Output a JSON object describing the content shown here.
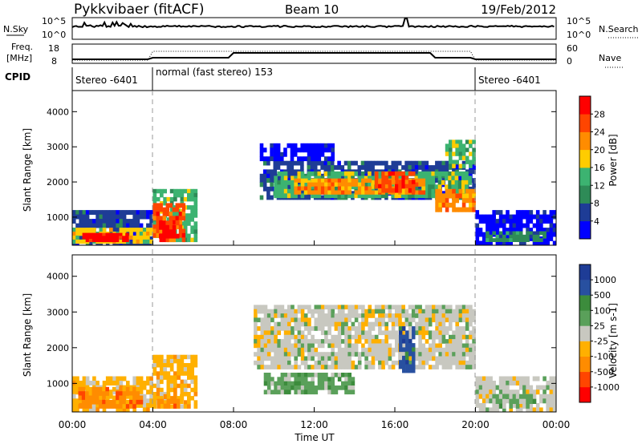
{
  "header": {
    "station": "Pykkvibaer (fitACF)",
    "beam": "Beam 10",
    "date": "19/Feb/2012"
  },
  "top_panels": {
    "nsky_label": "N.Sky",
    "nsky_ticks": [
      "10^5",
      "10^0"
    ],
    "nsearch_label": "N.Search",
    "nsearch_ticks": [
      "10^5",
      "10^0"
    ],
    "freq_label_1": "Freq.",
    "freq_label_2": "[MHz]",
    "freq_ticks": [
      "18",
      "8"
    ],
    "nave_label": "Nave",
    "nave_ticks": [
      "60",
      "0"
    ],
    "cpid_label": "CPID",
    "cpid_segments": [
      "Stereo -6401",
      "normal (fast stereo) 153",
      "Stereo -6401"
    ]
  },
  "x_axis": {
    "label": "Time UT",
    "ticks": [
      "00:00",
      "04:00",
      "08:00",
      "12:00",
      "16:00",
      "20:00",
      "00:00"
    ]
  },
  "colors": {
    "power": [
      "#0000ff",
      "#1e3c96",
      "#2e8b57",
      "#3cb371",
      "#ffcc00",
      "#ff8c00",
      "#ff4500",
      "#ff0000"
    ],
    "velocity": [
      "#ff0000",
      "#ff4500",
      "#ff8c00",
      "#ffb000",
      "#c8c8c0",
      "#5aa05a",
      "#3c8c3c",
      "#2850a0",
      "#1e3c96"
    ]
  },
  "chart_data": [
    {
      "type": "heatmap",
      "name": "power",
      "xlabel": "",
      "ylabel": "Slant Range [km]",
      "x_range_hours": [
        0,
        24
      ],
      "ylim": [
        200,
        4600
      ],
      "y_ticks": [
        "4000",
        "3000",
        "2000",
        "1000"
      ],
      "colorbar_label": "Power [dB]",
      "colorbar_ticks": [
        "28",
        "24",
        "20",
        "16",
        "12",
        "8",
        "4"
      ],
      "patches": [
        {
          "t0": 0.0,
          "t1": 4.0,
          "r0": 200,
          "r1": 1200,
          "level": 1
        },
        {
          "t0": 0.0,
          "t1": 4.0,
          "r0": 250,
          "r1": 700,
          "level": 4
        },
        {
          "t0": 0.5,
          "t1": 2.8,
          "r0": 300,
          "r1": 550,
          "level": 7
        },
        {
          "t0": 4.0,
          "t1": 6.2,
          "r0": 300,
          "r1": 1800,
          "level": 3
        },
        {
          "t0": 4.0,
          "t1": 5.6,
          "r0": 300,
          "r1": 1400,
          "level": 6
        },
        {
          "t0": 4.3,
          "t1": 5.3,
          "r0": 400,
          "r1": 900,
          "level": 7
        },
        {
          "t0": 9.3,
          "t1": 20.0,
          "r0": 1500,
          "r1": 2600,
          "level": 1
        },
        {
          "t0": 10.0,
          "t1": 19.8,
          "r0": 1550,
          "r1": 2300,
          "level": 3
        },
        {
          "t0": 11.0,
          "t1": 17.5,
          "r0": 1650,
          "r1": 2100,
          "level": 5
        },
        {
          "t0": 15.0,
          "t1": 17.0,
          "r0": 1700,
          "r1": 2300,
          "level": 6
        },
        {
          "t0": 18.0,
          "t1": 20.0,
          "r0": 1150,
          "r1": 1800,
          "level": 5
        },
        {
          "t0": 18.5,
          "t1": 20.0,
          "r0": 2400,
          "r1": 3200,
          "level": 3
        },
        {
          "t0": 9.3,
          "t1": 13.0,
          "r0": 2600,
          "r1": 3100,
          "level": 0
        },
        {
          "t0": 20.0,
          "t1": 24.0,
          "r0": 200,
          "r1": 1200,
          "level": 0
        },
        {
          "t0": 20.5,
          "t1": 23.5,
          "r0": 300,
          "r1": 600,
          "level": 2
        }
      ]
    },
    {
      "type": "heatmap",
      "name": "velocity",
      "xlabel": "Time UT",
      "ylabel": "Slant Range [km]",
      "x_range_hours": [
        0,
        24
      ],
      "ylim": [
        200,
        4600
      ],
      "y_ticks": [
        "4000",
        "3000",
        "2000",
        "1000"
      ],
      "colorbar_label": "Velocity [m s-1]",
      "colorbar_ticks": [
        "1000",
        "500",
        "100",
        "25",
        "-25",
        "-100",
        "-500",
        "-1000"
      ],
      "patches": [
        {
          "t0": 0.0,
          "t1": 4.0,
          "r0": 200,
          "r1": 1200,
          "level": 3
        },
        {
          "t0": 0.3,
          "t1": 3.5,
          "r0": 300,
          "r1": 900,
          "level": 2
        },
        {
          "t0": 4.0,
          "t1": 6.2,
          "r0": 300,
          "r1": 1800,
          "level": 3
        },
        {
          "t0": 4.2,
          "t1": 5.5,
          "r0": 300,
          "r1": 700,
          "level": 2
        },
        {
          "t0": 9.0,
          "t1": 20.0,
          "r0": 1400,
          "r1": 3200,
          "level": 4
        },
        {
          "t0": 9.5,
          "t1": 14.0,
          "r0": 700,
          "r1": 1300,
          "level": 5
        },
        {
          "t0": 16.2,
          "t1": 17.0,
          "r0": 1300,
          "r1": 2600,
          "level": 7
        },
        {
          "t0": 20.0,
          "t1": 24.0,
          "r0": 200,
          "r1": 1200,
          "level": 4
        },
        {
          "t0": 21.0,
          "t1": 23.0,
          "r0": 300,
          "r1": 700,
          "level": 5
        }
      ]
    }
  ]
}
